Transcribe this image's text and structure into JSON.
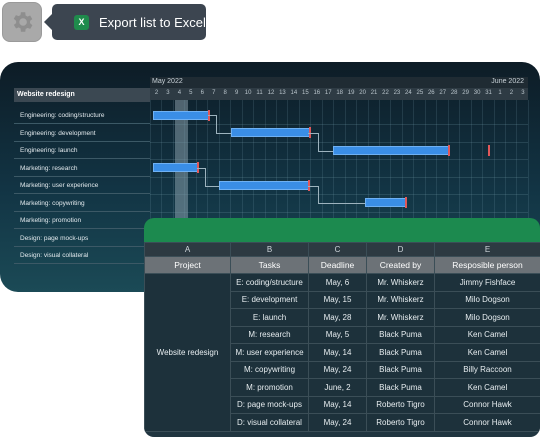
{
  "toolbar": {
    "settings_icon": "gear-icon",
    "export_label": "Export list to Excel",
    "export_icon_letter": "X"
  },
  "gantt": {
    "project_header": "Website redesign",
    "months": {
      "start": "May 2022",
      "end": "June 2022"
    },
    "days": [
      "2",
      "3",
      "4",
      "5",
      "6",
      "7",
      "8",
      "9",
      "10",
      "11",
      "12",
      "13",
      "14",
      "15",
      "16",
      "17",
      "18",
      "19",
      "20",
      "21",
      "22",
      "23",
      "24",
      "25",
      "26",
      "27",
      "28",
      "29",
      "30",
      "31",
      "1",
      "2",
      "3"
    ],
    "tasks": [
      "Engineering: coding/structure",
      "Engineering: development",
      "Engineering: launch",
      "Marketing: research",
      "Marketing: user experience",
      "Marketing: copywriting",
      "Marketing: promotion",
      "Design: page mock-ups",
      "Design: visual collateral"
    ]
  },
  "table": {
    "column_letters": [
      "A",
      "B",
      "C",
      "D",
      "E"
    ],
    "headers": [
      "Project",
      "Tasks",
      "Deadline",
      "Created by",
      "Resposible person"
    ],
    "project": "Website redesign",
    "rows": [
      [
        "E: coding/structure",
        "May, 6",
        "Mr. Whiskerz",
        "Jimmy Fishface"
      ],
      [
        "E: development",
        "May, 15",
        "Mr. Whiskerz",
        "Milo Dogson"
      ],
      [
        "E: launch",
        "May, 28",
        "Mr. Whiskerz",
        "Milo Dogson"
      ],
      [
        "M: research",
        "May, 5",
        "Black Puma",
        "Ken Camel"
      ],
      [
        "M: user experience",
        "May, 14",
        "Black Puma",
        "Ken Camel"
      ],
      [
        "M: copywriting",
        "May, 24",
        "Black Puma",
        "Billy Raccoon"
      ],
      [
        "M: promotion",
        "June, 2",
        "Black Puma",
        "Ken Camel"
      ],
      [
        "D: page mock-ups",
        "May, 14",
        "Roberto Tigro",
        "Connor Hawk"
      ],
      [
        "D: visual collateral",
        "May, 24",
        "Roberto Tigro",
        "Connor Hawk"
      ]
    ]
  }
}
